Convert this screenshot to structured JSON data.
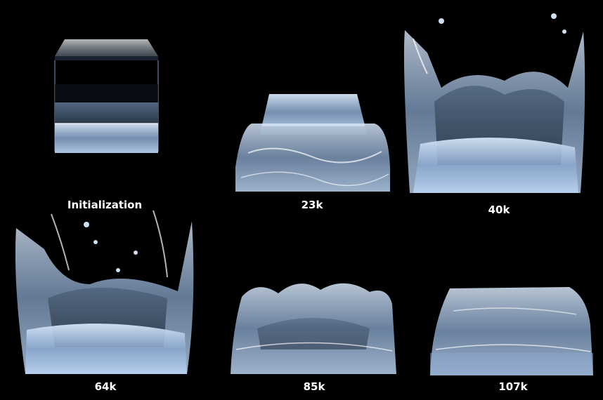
{
  "frames": [
    {
      "id": "init",
      "caption": "Initialization"
    },
    {
      "id": "f23k",
      "caption": "23k"
    },
    {
      "id": "f40k",
      "caption": "40k"
    },
    {
      "id": "f64k",
      "caption": "64k"
    },
    {
      "id": "f85k",
      "caption": "85k"
    },
    {
      "id": "f107k",
      "caption": "107k"
    }
  ],
  "colors": {
    "background": "#000000",
    "water": "#a9c4e6",
    "water_dark": "#3b4f6b",
    "highlight": "#ffffff"
  }
}
